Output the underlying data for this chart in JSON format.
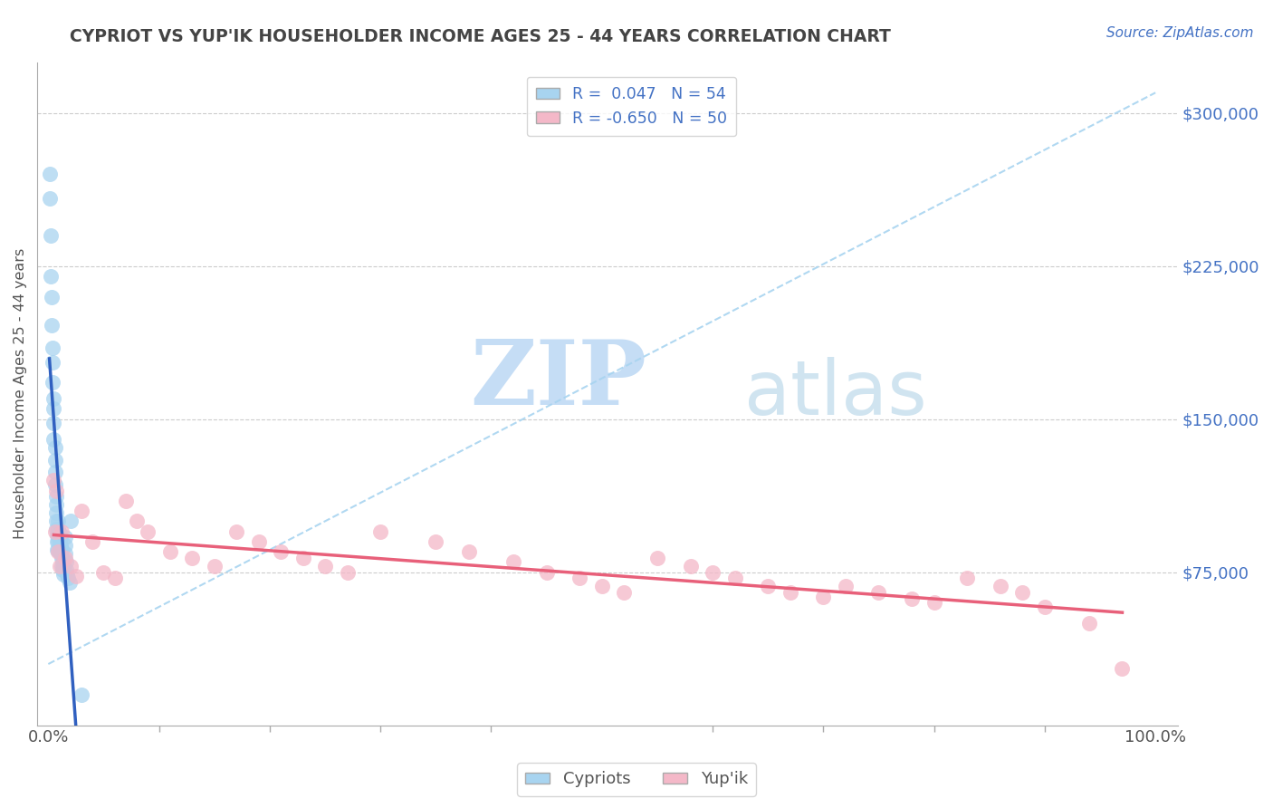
{
  "title": "CYPRIOT VS YUP'IK HOUSEHOLDER INCOME AGES 25 - 44 YEARS CORRELATION CHART",
  "source": "Source: ZipAtlas.com",
  "ylabel": "Householder Income Ages 25 - 44 years",
  "ytick_labels": [
    "$75,000",
    "$150,000",
    "$225,000",
    "$300,000"
  ],
  "ytick_values": [
    75000,
    150000,
    225000,
    300000
  ],
  "ymin": 0,
  "ymax": 325000,
  "xmin": 0.0,
  "xmax": 1.0,
  "cypriot_color": "#a8d4f0",
  "yupik_color": "#f4b8c8",
  "cypriot_line_color": "#3060c0",
  "yupik_line_color": "#e8607a",
  "dashed_line_color": "#a8d4f0",
  "watermark_zip_color": "#c8ddf0",
  "watermark_atlas_color": "#d8e8f0",
  "background_color": "#ffffff",
  "title_color": "#444444",
  "ytick_color": "#4472c4",
  "source_color": "#4472c4",
  "cypriot_R": 0.047,
  "yupik_R": -0.65,
  "cypriot_N": 54,
  "yupik_N": 50,
  "cypriot_points_x": [
    0.001,
    0.001,
    0.002,
    0.002,
    0.003,
    0.003,
    0.004,
    0.004,
    0.004,
    0.005,
    0.005,
    0.005,
    0.005,
    0.006,
    0.006,
    0.006,
    0.006,
    0.007,
    0.007,
    0.007,
    0.007,
    0.007,
    0.008,
    0.008,
    0.008,
    0.009,
    0.009,
    0.009,
    0.009,
    0.009,
    0.01,
    0.01,
    0.01,
    0.01,
    0.011,
    0.011,
    0.011,
    0.012,
    0.012,
    0.012,
    0.013,
    0.013,
    0.014,
    0.014,
    0.015,
    0.015,
    0.015,
    0.016,
    0.016,
    0.017,
    0.018,
    0.019,
    0.02,
    0.03
  ],
  "cypriot_points_y": [
    270000,
    258000,
    240000,
    220000,
    210000,
    196000,
    185000,
    178000,
    168000,
    160000,
    155000,
    148000,
    140000,
    136000,
    130000,
    124000,
    118000,
    112000,
    108000,
    104000,
    100000,
    96000,
    93000,
    90000,
    86000,
    100000,
    96000,
    93000,
    90000,
    86000,
    94000,
    92000,
    88000,
    85000,
    92000,
    88000,
    84000,
    86000,
    82000,
    78000,
    80000,
    76000,
    78000,
    74000,
    92000,
    88000,
    84000,
    80000,
    76000,
    74000,
    72000,
    70000,
    100000,
    15000
  ],
  "yupik_points_x": [
    0.005,
    0.006,
    0.007,
    0.009,
    0.01,
    0.012,
    0.015,
    0.02,
    0.025,
    0.03,
    0.04,
    0.05,
    0.06,
    0.07,
    0.08,
    0.09,
    0.11,
    0.13,
    0.15,
    0.17,
    0.19,
    0.21,
    0.23,
    0.25,
    0.27,
    0.3,
    0.35,
    0.38,
    0.42,
    0.45,
    0.48,
    0.5,
    0.52,
    0.55,
    0.58,
    0.6,
    0.62,
    0.65,
    0.67,
    0.7,
    0.72,
    0.75,
    0.78,
    0.8,
    0.83,
    0.86,
    0.88,
    0.9,
    0.94,
    0.97
  ],
  "yupik_points_y": [
    120000,
    95000,
    115000,
    85000,
    78000,
    95000,
    82000,
    78000,
    73000,
    105000,
    90000,
    75000,
    72000,
    110000,
    100000,
    95000,
    85000,
    82000,
    78000,
    95000,
    90000,
    85000,
    82000,
    78000,
    75000,
    95000,
    90000,
    85000,
    80000,
    75000,
    72000,
    68000,
    65000,
    82000,
    78000,
    75000,
    72000,
    68000,
    65000,
    63000,
    68000,
    65000,
    62000,
    60000,
    72000,
    68000,
    65000,
    58000,
    50000,
    28000
  ]
}
